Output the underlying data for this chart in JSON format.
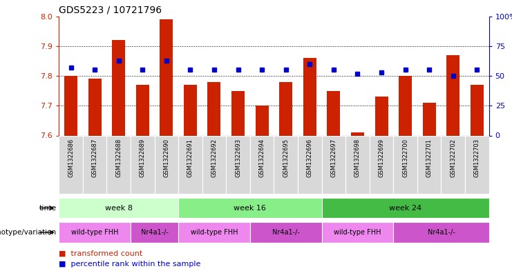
{
  "title": "GDS5223 / 10721796",
  "samples": [
    "GSM1322686",
    "GSM1322687",
    "GSM1322688",
    "GSM1322689",
    "GSM1322690",
    "GSM1322691",
    "GSM1322692",
    "GSM1322693",
    "GSM1322694",
    "GSM1322695",
    "GSM1322696",
    "GSM1322697",
    "GSM1322698",
    "GSM1322699",
    "GSM1322700",
    "GSM1322701",
    "GSM1322702",
    "GSM1322703"
  ],
  "red_values": [
    7.8,
    7.79,
    7.92,
    7.77,
    7.99,
    7.77,
    7.78,
    7.75,
    7.7,
    7.78,
    7.86,
    7.75,
    7.61,
    7.73,
    7.8,
    7.71,
    7.87,
    7.77
  ],
  "blue_values": [
    57,
    55,
    63,
    55,
    63,
    55,
    55,
    55,
    55,
    55,
    60,
    55,
    52,
    53,
    55,
    55,
    50,
    55
  ],
  "ylim_left": [
    7.6,
    8.0
  ],
  "ylim_right": [
    0,
    100
  ],
  "yticks_left": [
    7.6,
    7.7,
    7.8,
    7.9,
    8.0
  ],
  "yticks_right": [
    0,
    25,
    50,
    75,
    100
  ],
  "bar_color": "#cc2200",
  "dot_color": "#0000cc",
  "week8_color": "#ccffcc",
  "week16_color": "#88ee88",
  "week24_color": "#44bb44",
  "wt_color": "#ee88ee",
  "nr_color": "#cc55cc",
  "gray_color": "#d8d8d8",
  "time_groups": [
    {
      "label": "week 8",
      "start": 0,
      "end": 5
    },
    {
      "label": "week 16",
      "start": 5,
      "end": 11
    },
    {
      "label": "week 24",
      "start": 11,
      "end": 18
    }
  ],
  "genotype_groups": [
    {
      "label": "wild-type FHH",
      "start": 0,
      "end": 3
    },
    {
      "label": "Nr4a1-/-",
      "start": 3,
      "end": 5
    },
    {
      "label": "wild-type FHH",
      "start": 5,
      "end": 8
    },
    {
      "label": "Nr4a1-/-",
      "start": 8,
      "end": 11
    },
    {
      "label": "wild-type FHH",
      "start": 11,
      "end": 14
    },
    {
      "label": "Nr4a1-/-",
      "start": 14,
      "end": 18
    }
  ],
  "time_label": "time",
  "genotype_label": "genotype/variation",
  "legend_red": "transformed count",
  "legend_blue": "percentile rank within the sample",
  "tick_color_left": "#cc2200",
  "tick_color_right": "#0000cc"
}
